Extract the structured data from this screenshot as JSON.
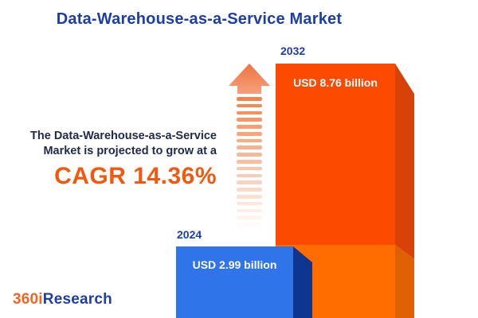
{
  "title": {
    "text": "Data-Warehouse-as-a-Service Market",
    "color": "#1D3EA8"
  },
  "projection": {
    "line1": "The Data-Warehouse-as-a-Service",
    "line2": "Market is projected to grow at a",
    "cagr": "CAGR 14.36%",
    "cagr_color": "#F2590F",
    "body_color": "#222B4A"
  },
  "chart_data": {
    "type": "bar",
    "title": "Data-Warehouse-as-a-Service Market",
    "unit": "USD billion",
    "categories": [
      "2024",
      "2032"
    ],
    "values": [
      2.99,
      8.76
    ],
    "value_labels": [
      "USD 2.99 billion",
      "USD 8.76 billion"
    ],
    "cagr_percent": 14.36,
    "legend": false,
    "style": "pictorial 3D bars cropped at bottom edge, growth arrow between annotation and tall bar"
  },
  "bars": {
    "blue": {
      "face_color": "#2F74E8",
      "side_color": "#0E3590"
    },
    "orange": {
      "face_top_color": "#FA4B01",
      "side_top_color": "#D84208",
      "face_bottom_color": "#FF6D00",
      "side_bottom_color": "#DF6003"
    }
  },
  "arrow": {
    "stripe_count": 19,
    "stripe_color": "#F5834B",
    "head_color_top": "#EE7440",
    "head_color_bottom": "#F5A07C"
  },
  "text_colors": {
    "title": "#1D3EA8",
    "year_labels": "#1D3EA8",
    "bar_values": "#FFFFFF"
  },
  "logo": {
    "part1": "360i",
    "part2": "Research",
    "part1_color": "#F26522",
    "part2_color": "#1E3FA0"
  }
}
